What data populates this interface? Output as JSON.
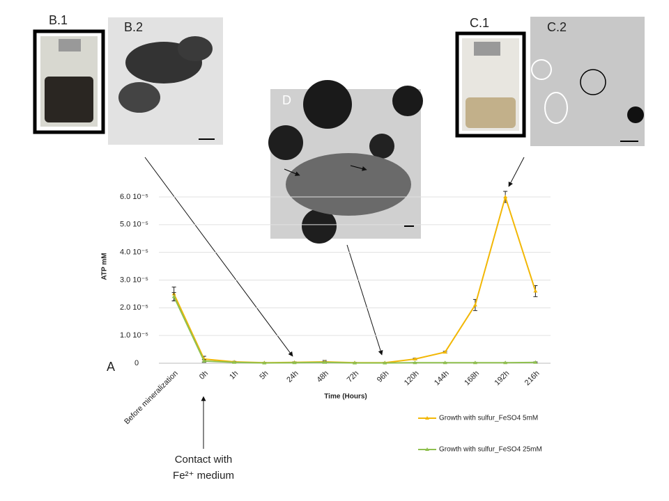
{
  "chart_data": {
    "type": "line",
    "x_label": "Time (Hours)",
    "y_label": "ATP mM",
    "categories": [
      "Before mineralization",
      "0h",
      "1h",
      "5h",
      "24h",
      "48h",
      "72h",
      "96h",
      "120h",
      "144h",
      "168h",
      "192h",
      "216h"
    ],
    "ylim": [
      0,
      6e-05
    ],
    "yticks": [
      0,
      {
        "value": 1e-05,
        "label": "1.0 10⁻⁵"
      },
      {
        "value": 2e-05,
        "label": "2.0 10⁻⁵"
      },
      {
        "value": 3e-05,
        "label": "3.0 10⁻⁵"
      },
      {
        "value": 4e-05,
        "label": "4.0 10⁻⁵"
      },
      {
        "value": 5e-05,
        "label": "5.0 10⁻⁵"
      },
      {
        "value": 6e-05,
        "label": "6.0 10⁻⁵"
      }
    ],
    "grid": true,
    "legend": "bottom-right",
    "series": [
      {
        "name": "Growth with sulfur_FeSO4 5mM",
        "color": "#f2b705",
        "values": [
          2.5e-05,
          1.5e-06,
          5e-07,
          2e-07,
          3e-07,
          5e-07,
          2e-07,
          2e-07,
          1.5e-06,
          4e-06,
          2.1e-05,
          6e-05,
          2.6e-05
        ],
        "errors": [
          2.5e-06,
          1e-06,
          2e-07,
          1e-07,
          2e-07,
          5e-07,
          1e-07,
          1e-07,
          3e-07,
          3e-07,
          2e-06,
          2e-06,
          2e-06
        ]
      },
      {
        "name": "Growth with sulfur_FeSO4 25mM",
        "color": "#8fc04f",
        "values": [
          2.4e-05,
          8e-07,
          3e-07,
          1e-07,
          2e-07,
          3e-07,
          1e-07,
          1e-07,
          2e-07,
          2e-07,
          2e-07,
          2e-07,
          3e-07
        ],
        "errors": [
          1.5e-06,
          5e-07,
          1e-07,
          1e-07,
          1e-07,
          2e-07,
          1e-07,
          1e-07,
          1e-07,
          1e-07,
          1e-07,
          1e-07,
          2e-07
        ]
      }
    ],
    "panel_labels": [
      "A",
      "B.1",
      "B.2",
      "C.1",
      "C.2",
      "D"
    ],
    "annotation": [
      "Contact with",
      "Fe²⁺ medium"
    ]
  }
}
